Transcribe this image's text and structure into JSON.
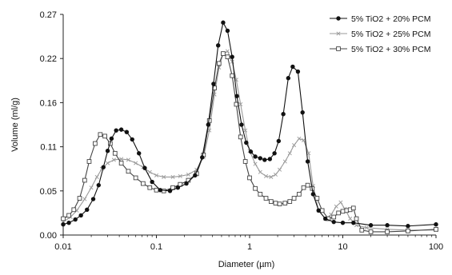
{
  "chart_data": {
    "type": "line",
    "title": "",
    "xlabel": "Diameter (µm)",
    "ylabel": "Volume (ml/g)",
    "xscale": "log",
    "xlim": [
      0.01,
      100
    ],
    "ylim": [
      0,
      0.27
    ],
    "xticks": [
      {
        "value": 0.01,
        "label": "0.01"
      },
      {
        "value": 0.1,
        "label": "0.1"
      },
      {
        "value": 1,
        "label": "1"
      },
      {
        "value": 10,
        "label": "10"
      },
      {
        "value": 100,
        "label": "100"
      }
    ],
    "yticks": [
      {
        "value": 0,
        "label": "0.00"
      },
      {
        "value": 0.054,
        "label": "0.05"
      },
      {
        "value": 0.108,
        "label": "0.11"
      },
      {
        "value": 0.162,
        "label": "0.16"
      },
      {
        "value": 0.216,
        "label": "0.22"
      },
      {
        "value": 0.27,
        "label": "0.27"
      }
    ],
    "grid": false,
    "legend_position": "top-right",
    "series": [
      {
        "name": "5% TiO2 + 20% PCM",
        "marker": "filled-circle",
        "color": "#111111",
        "points": [
          [
            0.01,
            0.013
          ],
          [
            0.0115,
            0.015
          ],
          [
            0.0135,
            0.019
          ],
          [
            0.0155,
            0.024
          ],
          [
            0.018,
            0.031
          ],
          [
            0.021,
            0.044
          ],
          [
            0.024,
            0.061
          ],
          [
            0.027,
            0.083
          ],
          [
            0.03,
            0.103
          ],
          [
            0.033,
            0.118
          ],
          [
            0.037,
            0.128
          ],
          [
            0.042,
            0.129
          ],
          [
            0.048,
            0.126
          ],
          [
            0.055,
            0.117
          ],
          [
            0.065,
            0.1
          ],
          [
            0.075,
            0.082
          ],
          [
            0.09,
            0.065
          ],
          [
            0.11,
            0.055
          ],
          [
            0.14,
            0.054
          ],
          [
            0.17,
            0.058
          ],
          [
            0.21,
            0.063
          ],
          [
            0.26,
            0.073
          ],
          [
            0.31,
            0.095
          ],
          [
            0.36,
            0.135
          ],
          [
            0.41,
            0.185
          ],
          [
            0.46,
            0.232
          ],
          [
            0.52,
            0.26
          ],
          [
            0.58,
            0.25
          ],
          [
            0.65,
            0.218
          ],
          [
            0.73,
            0.17
          ],
          [
            0.82,
            0.135
          ],
          [
            0.92,
            0.113
          ],
          [
            1.03,
            0.102
          ],
          [
            1.15,
            0.096
          ],
          [
            1.3,
            0.094
          ],
          [
            1.45,
            0.092
          ],
          [
            1.65,
            0.093
          ],
          [
            1.85,
            0.1
          ],
          [
            2.05,
            0.115
          ],
          [
            2.3,
            0.148
          ],
          [
            2.6,
            0.192
          ],
          [
            2.9,
            0.206
          ],
          [
            3.3,
            0.2
          ],
          [
            3.7,
            0.15
          ],
          [
            4.2,
            0.09
          ],
          [
            4.8,
            0.05
          ],
          [
            5.5,
            0.03
          ],
          [
            6.5,
            0.02
          ],
          [
            8,
            0.016
          ],
          [
            10,
            0.015
          ],
          [
            13,
            0.015
          ],
          [
            20,
            0.012
          ],
          [
            30,
            0.012
          ],
          [
            50,
            0.011
          ],
          [
            100,
            0.013
          ]
        ]
      },
      {
        "name": "5% TiO2 + 25% PCM",
        "marker": "cross",
        "color": "#9a9a9a",
        "points": [
          [
            0.01,
            0.016
          ],
          [
            0.012,
            0.022
          ],
          [
            0.014,
            0.03
          ],
          [
            0.017,
            0.044
          ],
          [
            0.02,
            0.058
          ],
          [
            0.023,
            0.071
          ],
          [
            0.026,
            0.081
          ],
          [
            0.03,
            0.088
          ],
          [
            0.035,
            0.092
          ],
          [
            0.042,
            0.093
          ],
          [
            0.05,
            0.092
          ],
          [
            0.06,
            0.088
          ],
          [
            0.072,
            0.083
          ],
          [
            0.085,
            0.077
          ],
          [
            0.1,
            0.073
          ],
          [
            0.12,
            0.071
          ],
          [
            0.15,
            0.071
          ],
          [
            0.18,
            0.072
          ],
          [
            0.22,
            0.074
          ],
          [
            0.27,
            0.08
          ],
          [
            0.32,
            0.095
          ],
          [
            0.37,
            0.128
          ],
          [
            0.42,
            0.172
          ],
          [
            0.47,
            0.205
          ],
          [
            0.52,
            0.222
          ],
          [
            0.58,
            0.225
          ],
          [
            0.65,
            0.212
          ],
          [
            0.72,
            0.19
          ],
          [
            0.8,
            0.16
          ],
          [
            0.9,
            0.128
          ],
          [
            1.0,
            0.103
          ],
          [
            1.15,
            0.087
          ],
          [
            1.3,
            0.077
          ],
          [
            1.5,
            0.072
          ],
          [
            1.7,
            0.071
          ],
          [
            1.9,
            0.074
          ],
          [
            2.1,
            0.08
          ],
          [
            2.4,
            0.09
          ],
          [
            2.7,
            0.1
          ],
          [
            3.0,
            0.11
          ],
          [
            3.4,
            0.118
          ],
          [
            3.8,
            0.116
          ],
          [
            4.3,
            0.1
          ],
          [
            4.8,
            0.06
          ],
          [
            5.5,
            0.03
          ],
          [
            6.5,
            0.02
          ],
          [
            7.5,
            0.025
          ],
          [
            8.5,
            0.035
          ],
          [
            9.5,
            0.04
          ],
          [
            10.5,
            0.032
          ],
          [
            12,
            0.02
          ],
          [
            14,
            0.012
          ],
          [
            18,
            0.009
          ],
          [
            30,
            0.007
          ],
          [
            50,
            0.006
          ],
          [
            100,
            0.006
          ]
        ]
      },
      {
        "name": "5% TiO2 + 30% PCM",
        "marker": "open-square",
        "color": "#444444",
        "points": [
          [
            0.01,
            0.02
          ],
          [
            0.0115,
            0.024
          ],
          [
            0.013,
            0.031
          ],
          [
            0.015,
            0.045
          ],
          [
            0.017,
            0.067
          ],
          [
            0.019,
            0.09
          ],
          [
            0.022,
            0.112
          ],
          [
            0.025,
            0.123
          ],
          [
            0.028,
            0.121
          ],
          [
            0.032,
            0.112
          ],
          [
            0.036,
            0.1
          ],
          [
            0.042,
            0.088
          ],
          [
            0.05,
            0.078
          ],
          [
            0.06,
            0.07
          ],
          [
            0.072,
            0.063
          ],
          [
            0.085,
            0.058
          ],
          [
            0.1,
            0.055
          ],
          [
            0.12,
            0.054
          ],
          [
            0.15,
            0.058
          ],
          [
            0.18,
            0.062
          ],
          [
            0.22,
            0.067
          ],
          [
            0.27,
            0.075
          ],
          [
            0.32,
            0.098
          ],
          [
            0.37,
            0.14
          ],
          [
            0.42,
            0.18
          ],
          [
            0.47,
            0.21
          ],
          [
            0.52,
            0.222
          ],
          [
            0.58,
            0.218
          ],
          [
            0.65,
            0.195
          ],
          [
            0.72,
            0.16
          ],
          [
            0.8,
            0.12
          ],
          [
            0.9,
            0.09
          ],
          [
            1.0,
            0.07
          ],
          [
            1.15,
            0.057
          ],
          [
            1.3,
            0.05
          ],
          [
            1.5,
            0.045
          ],
          [
            1.7,
            0.041
          ],
          [
            1.9,
            0.039
          ],
          [
            2.1,
            0.038
          ],
          [
            2.4,
            0.039
          ],
          [
            2.7,
            0.041
          ],
          [
            3.0,
            0.045
          ],
          [
            3.4,
            0.05
          ],
          [
            3.8,
            0.058
          ],
          [
            4.2,
            0.061
          ],
          [
            4.7,
            0.057
          ],
          [
            5.3,
            0.045
          ],
          [
            6.0,
            0.03
          ],
          [
            7,
            0.02
          ],
          [
            8,
            0.022
          ],
          [
            9,
            0.027
          ],
          [
            10,
            0.029
          ],
          [
            11,
            0.03
          ],
          [
            12,
            0.031
          ],
          [
            13,
            0.033
          ],
          [
            14,
            0.02
          ],
          [
            16,
            0.006
          ],
          [
            20,
            0.004
          ],
          [
            30,
            0.004
          ],
          [
            50,
            0.005
          ],
          [
            100,
            0.007
          ]
        ]
      }
    ]
  }
}
